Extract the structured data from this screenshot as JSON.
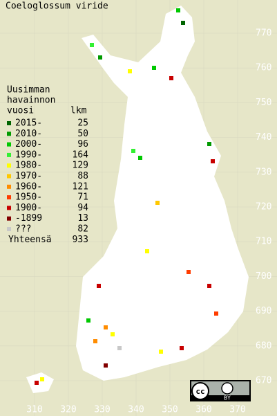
{
  "title": "Coeloglossum viride",
  "legend": {
    "heading": [
      "Uusimman",
      "havainnon",
      "vuosi"
    ],
    "count_heading": "lkm",
    "items": [
      {
        "label": "2015-",
        "count": 25,
        "color": "#006400"
      },
      {
        "label": "2010-",
        "count": 50,
        "color": "#009a00"
      },
      {
        "label": "2000-",
        "count": 96,
        "color": "#00c800"
      },
      {
        "label": "1990-",
        "count": 164,
        "color": "#32f032"
      },
      {
        "label": "1980-",
        "count": 129,
        "color": "#ffff00"
      },
      {
        "label": "1970-",
        "count": 88,
        "color": "#ffc800"
      },
      {
        "label": "1960-",
        "count": 121,
        "color": "#ff8c00"
      },
      {
        "label": "1950-",
        "count": 71,
        "color": "#ff3c00"
      },
      {
        "label": "1900-",
        "count": 94,
        "color": "#c80000"
      },
      {
        "label": "-1899",
        "count": 13,
        "color": "#820000"
      },
      {
        "label": "???",
        "count": 82,
        "color": "#c8c8c8"
      }
    ],
    "total_label": "Yhteensä",
    "total": 933
  },
  "grid": {
    "x_labels": [
      310,
      320,
      330,
      340,
      350,
      360,
      370
    ],
    "y_labels": [
      770,
      760,
      750,
      740,
      730,
      720,
      710,
      700,
      690,
      680,
      670
    ]
  },
  "license": {
    "cc": "cc",
    "by": "BY"
  }
}
